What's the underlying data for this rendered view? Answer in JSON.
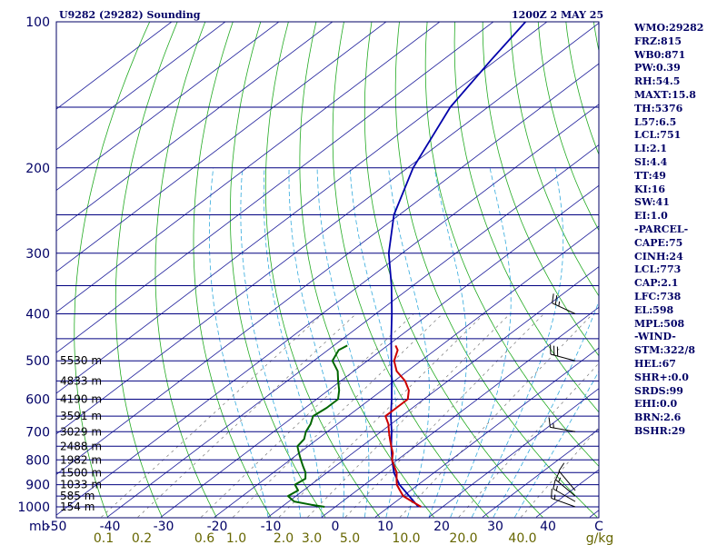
{
  "header": {
    "station": "U9282 (29282) Sounding",
    "time": "1200Z  2 MAY 25"
  },
  "indices": [
    "WMO:29282",
    "FRZ:815",
    "WB0:871",
    "PW:0.39",
    "RH:54.5",
    "MAXT:15.8",
    "TH:5376",
    "L57:6.5",
    "LCL:751",
    "LI:2.1",
    "SI:4.4",
    "TT:49",
    "KI:16",
    "SW:41",
    "EI:1.0",
    "-PARCEL-",
    "CAPE:75",
    "CINH:24",
    "LCL:773",
    "CAP:2.1",
    "LFC:738",
    "EL:598",
    "MPL:508",
    "-WIND-",
    "STM:322/8",
    "HEL:67",
    "SHR+:0.0",
    "SRDS:99",
    "EHI:0.0",
    "BRN:2.6",
    "BSHR:29"
  ],
  "colors": {
    "frame": "#000066",
    "isobar": "#000080",
    "isotherm": "#1a1a99",
    "dry_adiabat": "#22aa22",
    "moist_adiabat": "#33aadd",
    "mixing_ratio": "#777777",
    "temperature": "#cc0000",
    "dewpoint": "#006600",
    "parcel": "#0000aa",
    "labels": "#000066",
    "mixing_labels": "#666600"
  },
  "chart_data": {
    "type": "skew-t log-p sounding",
    "pressure_ticks": [
      "100",
      "200",
      "300",
      "400",
      "500",
      "600",
      "700",
      "800",
      "900",
      "1000"
    ],
    "pressure_unit_label": "mb",
    "temperature_ticks": [
      "-50",
      "-40",
      "-30",
      "-20",
      "-10",
      "0",
      "10",
      "20",
      "30",
      "40",
      "C"
    ],
    "temperature_range": [
      -50,
      50
    ],
    "mixing_ratio_labels": [
      "0.1",
      "0.2",
      "0.6",
      "1.0",
      "2.0",
      "3.0",
      "5.0",
      "10.0",
      "20.0",
      "40.0",
      "g/kg"
    ],
    "mixing_ratio_values": [
      0.1,
      0.2,
      0.6,
      1.0,
      2.0,
      3.0,
      5.0,
      10.0,
      20.0,
      40.0
    ],
    "height_labels": [
      {
        "p": 1000,
        "label": "154 m"
      },
      {
        "p": 950,
        "label": "585 m"
      },
      {
        "p": 900,
        "label": "1033 m"
      },
      {
        "p": 850,
        "label": "1500 m"
      },
      {
        "p": 800,
        "label": "1982 m"
      },
      {
        "p": 750,
        "label": "2488 m"
      },
      {
        "p": 700,
        "label": "3029 m"
      },
      {
        "p": 650,
        "label": "3591 m"
      },
      {
        "p": 600,
        "label": "4190 m"
      },
      {
        "p": 550,
        "label": "4833 m"
      },
      {
        "p": 500,
        "label": "5530 m"
      }
    ],
    "temperature_profile": [
      [
        1000,
        16.0
      ],
      [
        975,
        13.0
      ],
      [
        950,
        10.0
      ],
      [
        925,
        8.0
      ],
      [
        900,
        6.0
      ],
      [
        875,
        4.5
      ],
      [
        850,
        3.0
      ],
      [
        825,
        1.0
      ],
      [
        800,
        -1.0
      ],
      [
        775,
        -2.5
      ],
      [
        750,
        -4.5
      ],
      [
        725,
        -6.5
      ],
      [
        700,
        -8.5
      ],
      [
        675,
        -10.5
      ],
      [
        650,
        -13.0
      ],
      [
        625,
        -13.0
      ],
      [
        600,
        -13.0
      ],
      [
        575,
        -15.0
      ],
      [
        550,
        -18.0
      ],
      [
        525,
        -22.0
      ],
      [
        500,
        -25.0
      ],
      [
        475,
        -27.0
      ],
      [
        465,
        -28.5
      ]
    ],
    "dewpoint_profile": [
      [
        1000,
        -2.0
      ],
      [
        990,
        -5.0
      ],
      [
        975,
        -9.0
      ],
      [
        950,
        -11.5
      ],
      [
        925,
        -11.0
      ],
      [
        900,
        -13.0
      ],
      [
        875,
        -12.5
      ],
      [
        850,
        -14.0
      ],
      [
        825,
        -16.0
      ],
      [
        800,
        -18.0
      ],
      [
        775,
        -20.0
      ],
      [
        750,
        -22.0
      ],
      [
        725,
        -22.5
      ],
      [
        700,
        -24.0
      ],
      [
        675,
        -25.0
      ],
      [
        650,
        -26.5
      ],
      [
        625,
        -26.0
      ],
      [
        600,
        -26.0
      ],
      [
        575,
        -28.0
      ],
      [
        550,
        -30.5
      ],
      [
        525,
        -33.0
      ],
      [
        500,
        -36.5
      ],
      [
        475,
        -38.0
      ],
      [
        465,
        -37.5
      ]
    ],
    "parcel_profile": [
      [
        1000,
        15.5
      ],
      [
        900,
        6.5
      ],
      [
        850,
        2.5
      ],
      [
        800,
        -1.0
      ],
      [
        750,
        -4.5
      ],
      [
        700,
        -8.0
      ],
      [
        650,
        -12.0
      ],
      [
        600,
        -16.0
      ],
      [
        550,
        -20.5
      ],
      [
        500,
        -25.5
      ],
      [
        450,
        -31.0
      ],
      [
        400,
        -37.0
      ],
      [
        350,
        -44.0
      ],
      [
        300,
        -52.5
      ],
      [
        250,
        -61.0
      ],
      [
        200,
        -69.0
      ],
      [
        150,
        -77.0
      ],
      [
        120,
        -81.0
      ],
      [
        100,
        -84.0
      ]
    ],
    "wind_barbs": [
      {
        "p": 1000,
        "dir": 290,
        "spd": 15
      },
      {
        "p": 975,
        "dir": 300,
        "spd": 15
      },
      {
        "p": 950,
        "dir": 310,
        "spd": 15
      },
      {
        "p": 925,
        "dir": 320,
        "spd": 10
      },
      {
        "p": 700,
        "dir": 280,
        "spd": 15
      },
      {
        "p": 500,
        "dir": 285,
        "spd": 30
      },
      {
        "p": 400,
        "dir": 295,
        "spd": 25
      }
    ]
  }
}
